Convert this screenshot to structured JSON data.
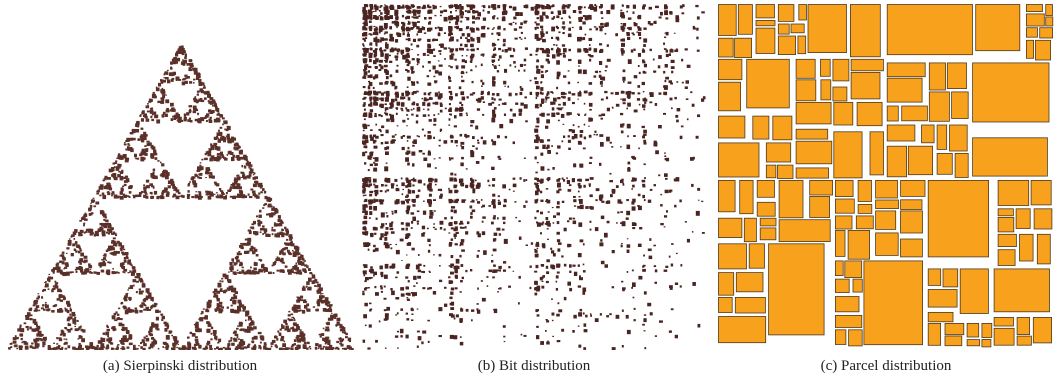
{
  "figure": {
    "subfigures": [
      {
        "id": "a",
        "caption": "(a)  Sierpinski distribution",
        "distribution": "sierpinski",
        "fill_color": "#5a3028"
      },
      {
        "id": "b",
        "caption": "(b)  Bit distribution",
        "distribution": "bit",
        "fill_color": "#4a2420"
      },
      {
        "id": "c",
        "caption": "(c)  Parcel distribution",
        "distribution": "parcel",
        "fill_color": "#f7a11c",
        "stroke_color": "#4d3a20"
      }
    ]
  }
}
